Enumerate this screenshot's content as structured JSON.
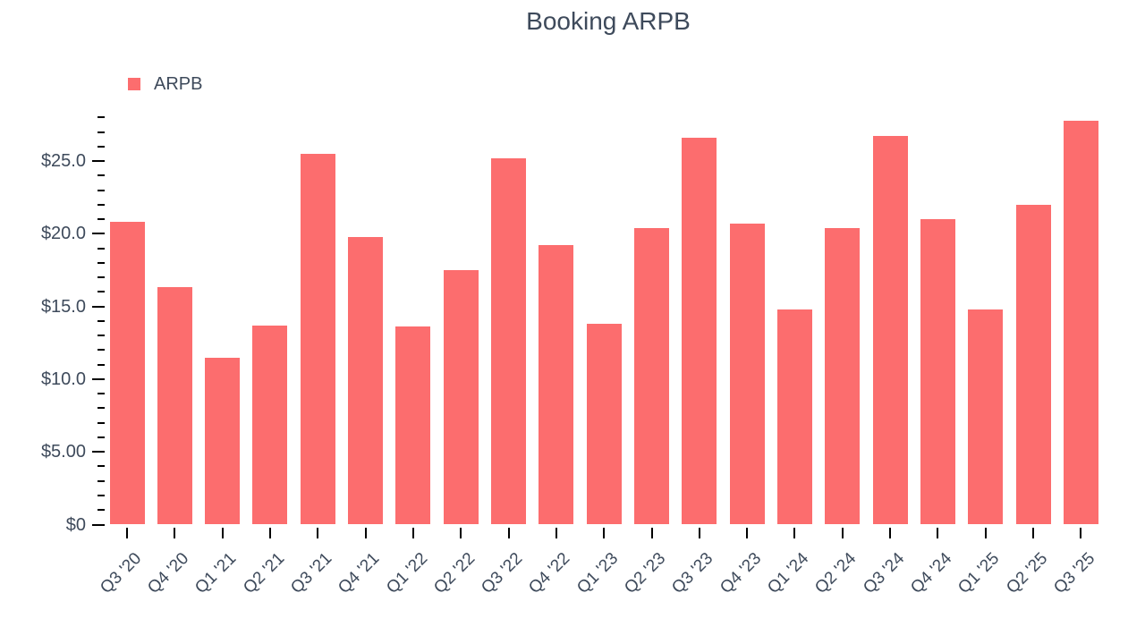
{
  "title": "Booking ARPB",
  "legend": {
    "items": [
      {
        "label": "ARPB",
        "color": "#fc6d6e"
      }
    ]
  },
  "chart_data": {
    "type": "bar",
    "title": "Booking ARPB",
    "series": [
      {
        "name": "ARPB",
        "color": "#fc6d6e",
        "values": [
          20.8,
          16.3,
          11.5,
          13.7,
          25.5,
          19.8,
          13.6,
          17.5,
          25.2,
          19.2,
          13.8,
          20.4,
          26.6,
          20.7,
          14.8,
          20.4,
          26.7,
          21.0,
          14.8,
          22.0,
          27.8
        ]
      }
    ],
    "categories": [
      "Q3 '20",
      "Q4 '20",
      "Q1 '21",
      "Q2 '21",
      "Q3 '21",
      "Q4 '21",
      "Q1 '22",
      "Q2 '22",
      "Q3 '22",
      "Q4 '22",
      "Q1 '23",
      "Q2 '23",
      "Q3 '23",
      "Q4 '23",
      "Q1 '24",
      "Q2 '24",
      "Q3 '24",
      "Q4 '24",
      "Q1 '25",
      "Q2 '25",
      "Q3 '25"
    ],
    "xlabel": "",
    "ylabel": "",
    "unit_prefix": "$",
    "ylim": [
      0,
      28.2
    ],
    "y_major_ticks": [
      0,
      5,
      10,
      15,
      20,
      25
    ],
    "y_major_tick_labels": [
      "$0",
      "$5.00",
      "$10.0",
      "$15.0",
      "$20.0",
      "$25.0"
    ],
    "y_minor_tick_interval": 1,
    "y_minor_tick_max": 28,
    "grid": false,
    "legend_position": "top-left",
    "axis_text_color": "#3e4a5b",
    "tick_color": "#000000"
  }
}
